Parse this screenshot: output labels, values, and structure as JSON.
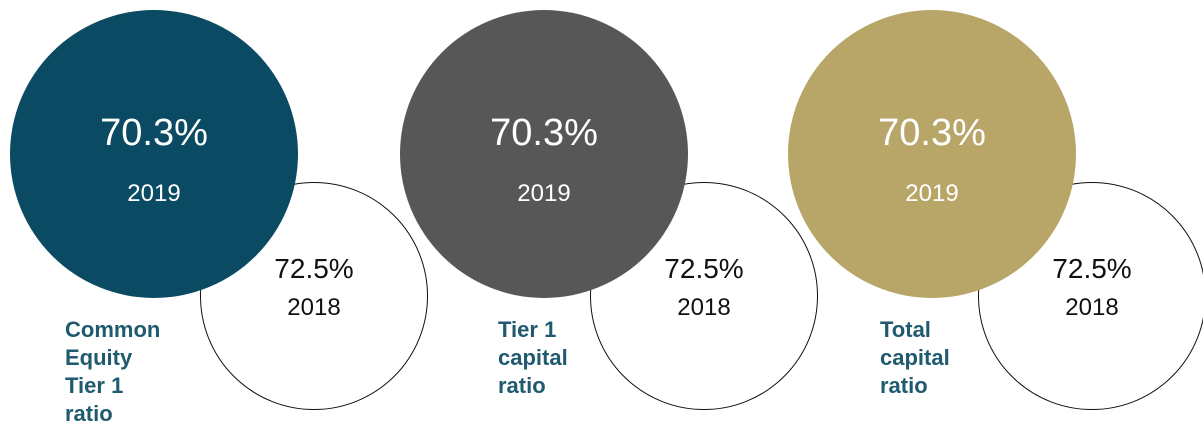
{
  "colors": {
    "label_text": "#1f5a6e",
    "prior_outline": "#111111",
    "current_text": "#ffffff"
  },
  "ratios": [
    {
      "label": "Common\nEquity\nTier 1\nratio",
      "current_value": "70.3%",
      "current_year": "2019",
      "prior_value": "72.5%",
      "prior_year": "2018",
      "current_color": "#0b4a63"
    },
    {
      "label": "Tier 1\ncapital\nratio",
      "current_value": "70.3%",
      "current_year": "2019",
      "prior_value": "72.5%",
      "prior_year": "2018",
      "current_color": "#575757"
    },
    {
      "label": "Total\ncapital\nratio",
      "current_value": "70.3%",
      "current_year": "2019",
      "prior_value": "72.5%",
      "prior_year": "2018",
      "current_color": "#b8a568"
    }
  ]
}
